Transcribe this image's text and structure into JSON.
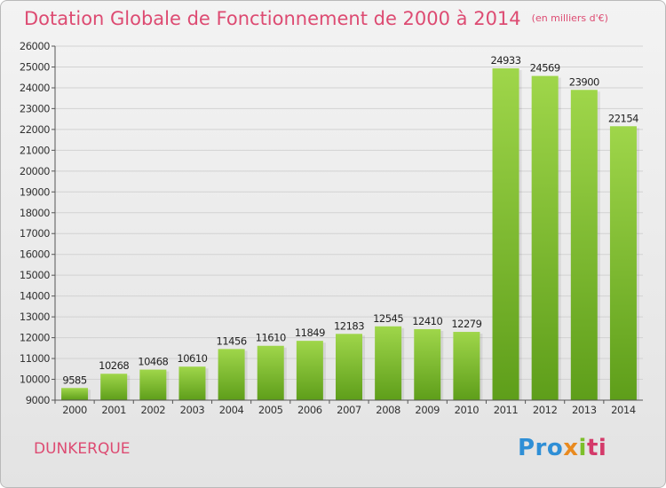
{
  "header": {
    "title": "Dotation Globale de Fonctionnement de 2000 à 2014",
    "unit": "(en milliers d'€)"
  },
  "footer": {
    "city": "DUNKERQUE",
    "logo_parts": [
      "Pro",
      "x",
      "i",
      "ti"
    ]
  },
  "colors": {
    "bar_light": "#9fd64a",
    "bar_dark": "#5e9e1a",
    "title": "#dd4b72"
  },
  "chart_data": {
    "type": "bar",
    "categories": [
      "2000",
      "2001",
      "2002",
      "2003",
      "2004",
      "2005",
      "2006",
      "2007",
      "2008",
      "2009",
      "2010",
      "2011",
      "2012",
      "2013",
      "2014"
    ],
    "values": [
      9585,
      10268,
      10468,
      10610,
      11456,
      11610,
      11849,
      12183,
      12545,
      12410,
      12279,
      24933,
      24569,
      23900,
      22154
    ],
    "title": "Dotation Globale de Fonctionnement de 2000 à 2014",
    "ylim": [
      9000,
      26000
    ],
    "yticks": [
      9000,
      10000,
      11000,
      12000,
      13000,
      14000,
      15000,
      16000,
      17000,
      18000,
      19000,
      20000,
      21000,
      22000,
      23000,
      24000,
      25000,
      26000
    ],
    "grid": true,
    "data_labels": true
  }
}
